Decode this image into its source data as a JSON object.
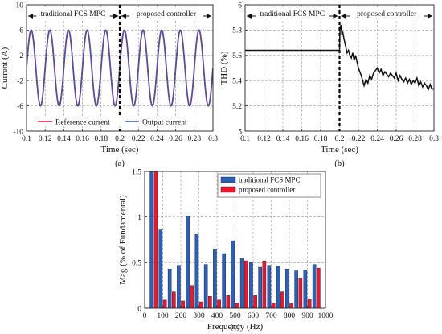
{
  "chart_data": [
    {
      "panel": "(a)",
      "type": "line",
      "xlabel": "Time (sec)",
      "ylabel": "Current (A)",
      "xlim": [
        0.1,
        0.3
      ],
      "ylim": [
        -10,
        10
      ],
      "xticks": [
        0.1,
        0.12,
        0.14,
        0.16,
        0.18,
        0.2,
        0.22,
        0.24,
        0.26,
        0.28,
        0.3
      ],
      "xtick_labels": [
        "0.1",
        "0.12",
        "0.14",
        "0.16",
        "0.18",
        "0.2",
        "0.22",
        "0.24",
        "0.26",
        "0.28",
        "0.3"
      ],
      "yticks": [
        -10,
        -6,
        -2,
        2,
        6,
        10
      ],
      "ytick_labels": [
        "-10",
        "-6",
        "-2",
        "2",
        "6",
        "10"
      ],
      "grid": true,
      "legend_position": "bottom",
      "divider_x": 0.2,
      "region_labels": [
        {
          "text": "traditional FCS MPC",
          "x_from": 0.1,
          "x_to": 0.2
        },
        {
          "text": "proposed controller",
          "x_from": 0.2,
          "x_to": 0.3
        }
      ],
      "series": [
        {
          "name": "Reference current",
          "color": "#e8192c",
          "amplitude": 6,
          "frequency_hz": 50,
          "phase_deg": 0,
          "x": [
            0.1,
            0.3
          ]
        },
        {
          "name": "Output current",
          "color": "#2d5fb5",
          "amplitude": 6,
          "frequency_hz": 50,
          "phase_deg": 0,
          "x": [
            0.1,
            0.3
          ]
        }
      ]
    },
    {
      "panel": "(b)",
      "type": "line",
      "xlabel": "Time (sec)",
      "ylabel": "THD (%)",
      "xlim": [
        0.1,
        0.3
      ],
      "ylim": [
        5,
        6
      ],
      "xticks": [
        0.1,
        0.12,
        0.14,
        0.16,
        0.18,
        0.2,
        0.22,
        0.24,
        0.26,
        0.28,
        0.3
      ],
      "xtick_labels": [
        "0.1",
        "0.12",
        "0.14",
        "0.16",
        "0.18",
        "0.2",
        "0.22",
        "0.24",
        "0.26",
        "0.28",
        "0.3"
      ],
      "yticks": [
        5,
        5.2,
        5.4,
        5.6,
        5.8,
        6
      ],
      "ytick_labels": [
        "5",
        "5.2",
        "5.4",
        "5.6",
        "5.8",
        "6"
      ],
      "grid": true,
      "divider_x": 0.2,
      "region_labels": [
        {
          "text": "traditional FCS MPC",
          "x_from": 0.1,
          "x_to": 0.2
        },
        {
          "text": "proposed controller",
          "x_from": 0.2,
          "x_to": 0.3
        }
      ],
      "series": [
        {
          "color": "#111111",
          "x": [
            0.1,
            0.2,
            0.2005,
            0.2015,
            0.2025,
            0.2035,
            0.205,
            0.2065,
            0.208,
            0.2095,
            0.211,
            0.2125,
            0.214,
            0.2155,
            0.217,
            0.2185,
            0.22,
            0.2215,
            0.223,
            0.2245,
            0.226,
            0.228,
            0.23,
            0.232,
            0.234,
            0.236,
            0.238,
            0.24,
            0.242,
            0.244,
            0.246,
            0.248,
            0.25,
            0.252,
            0.254,
            0.256,
            0.258,
            0.26,
            0.262,
            0.264,
            0.266,
            0.268,
            0.27,
            0.272,
            0.274,
            0.276,
            0.278,
            0.28,
            0.282,
            0.284,
            0.286,
            0.288,
            0.29,
            0.292,
            0.294,
            0.296,
            0.298,
            0.3
          ],
          "y": [
            5.64,
            5.64,
            5.81,
            5.84,
            5.76,
            5.78,
            5.72,
            5.67,
            5.62,
            5.64,
            5.6,
            5.58,
            5.62,
            5.56,
            5.6,
            5.55,
            5.5,
            5.47,
            5.44,
            5.4,
            5.36,
            5.41,
            5.38,
            5.44,
            5.41,
            5.46,
            5.48,
            5.5,
            5.46,
            5.49,
            5.44,
            5.47,
            5.45,
            5.43,
            5.46,
            5.44,
            5.42,
            5.46,
            5.4,
            5.44,
            5.41,
            5.39,
            5.42,
            5.38,
            5.41,
            5.37,
            5.4,
            5.38,
            5.42,
            5.36,
            5.39,
            5.35,
            5.38,
            5.36,
            5.33,
            5.37,
            5.33,
            5.34
          ]
        }
      ]
    },
    {
      "panel": "(c)",
      "type": "bar",
      "xlabel": "Frequency (Hz)",
      "ylabel": "Mag (% of Fundamental)",
      "xlim": [
        0,
        1000
      ],
      "ylim": [
        0,
        1.5
      ],
      "xticks": [
        0,
        100,
        200,
        300,
        400,
        500,
        600,
        700,
        800,
        900,
        1000
      ],
      "xtick_labels": [
        "0",
        "100",
        "200",
        "300",
        "400",
        "500",
        "600",
        "700",
        "800",
        "900",
        "1000"
      ],
      "yticks": [
        0,
        0.5,
        1,
        1.5
      ],
      "ytick_labels": [
        "0",
        "0.5",
        "1",
        "1.5"
      ],
      "grid": true,
      "legend_position": "top-right",
      "categories": [
        50,
        100,
        150,
        200,
        250,
        300,
        350,
        400,
        450,
        500,
        550,
        600,
        650,
        700,
        750,
        800,
        850,
        900,
        950
      ],
      "series": [
        {
          "name": "traditional FCS MPC",
          "color": "#2d5fb5",
          "values": [
            1.5,
            0.86,
            0.43,
            0.47,
            1.01,
            0.81,
            0.48,
            0.65,
            0.6,
            0.74,
            0.55,
            0.5,
            0.45,
            0.47,
            0.46,
            0.43,
            0.41,
            0.42,
            0.48
          ]
        },
        {
          "name": "proposed controller",
          "color": "#e8192c",
          "values": [
            1.5,
            0.09,
            0.18,
            0.08,
            0.25,
            0.07,
            0.13,
            0.09,
            0.14,
            0.06,
            0.52,
            0.14,
            0.52,
            0.06,
            0.18,
            0.05,
            0.33,
            0.1,
            0.44
          ]
        }
      ]
    }
  ]
}
